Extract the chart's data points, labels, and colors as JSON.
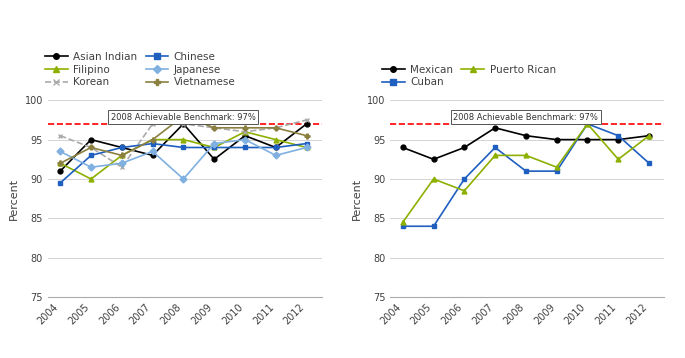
{
  "years": [
    2004,
    2005,
    2006,
    2007,
    2008,
    2009,
    2010,
    2011,
    2012
  ],
  "left_chart": {
    "Asian Indian": [
      91,
      95,
      94,
      93,
      97,
      92.5,
      95.5,
      94,
      97
    ],
    "Filipino": [
      92,
      90,
      93,
      95,
      95,
      94,
      96,
      95,
      94
    ],
    "Korean": [
      95.5,
      94,
      91.5,
      97,
      97,
      96.5,
      96,
      96.5,
      97.5
    ],
    "Chinese": [
      89.5,
      93,
      94,
      94.5,
      94,
      94,
      94,
      94,
      94.5
    ],
    "Japanese": [
      93.5,
      91.5,
      92,
      93.5,
      90,
      94.5,
      95,
      93,
      94
    ],
    "Vietnamese": [
      92,
      94,
      93,
      95,
      98,
      96.5,
      96.5,
      96.5,
      95.5
    ]
  },
  "right_chart": {
    "Mexican": [
      94,
      92.5,
      94,
      96.5,
      95.5,
      95,
      95,
      95,
      95.5
    ],
    "Cuban": [
      84,
      84,
      90,
      94,
      91,
      91,
      97,
      95.5,
      92
    ],
    "Puerto Rican": [
      84.5,
      90,
      88.5,
      93,
      93,
      91.5,
      97,
      92.5,
      95.5
    ]
  },
  "benchmark": 97,
  "ylim": [
    75,
    100
  ],
  "yticks": [
    75,
    80,
    85,
    90,
    95,
    100
  ],
  "benchmark_label": "2008 Achievable Benchmark: 97%",
  "ylabel": "Percent",
  "colors": {
    "Asian Indian": "#000000",
    "Filipino": "#8db000",
    "Korean": "#aaaaaa",
    "Chinese": "#1f5fc0",
    "Japanese": "#7fb0e0",
    "Vietnamese": "#8b8040",
    "Mexican": "#000000",
    "Cuban": "#1f5fc0",
    "Puerto Rican": "#8db000"
  },
  "markers": {
    "Asian Indian": "o",
    "Filipino": "^",
    "Korean": "x",
    "Chinese": "s",
    "Japanese": "D",
    "Vietnamese": "P",
    "Mexican": "o",
    "Cuban": "s",
    "Puerto Rican": "^"
  },
  "korean_dashed": true,
  "left_legend_order": [
    "Asian Indian",
    "Chinese",
    "Filipino",
    "Japanese",
    "Korean",
    "Vietnamese"
  ],
  "right_legend_order": [
    "Mexican",
    "Cuban",
    "Puerto Rican"
  ],
  "text_color": "#404040"
}
